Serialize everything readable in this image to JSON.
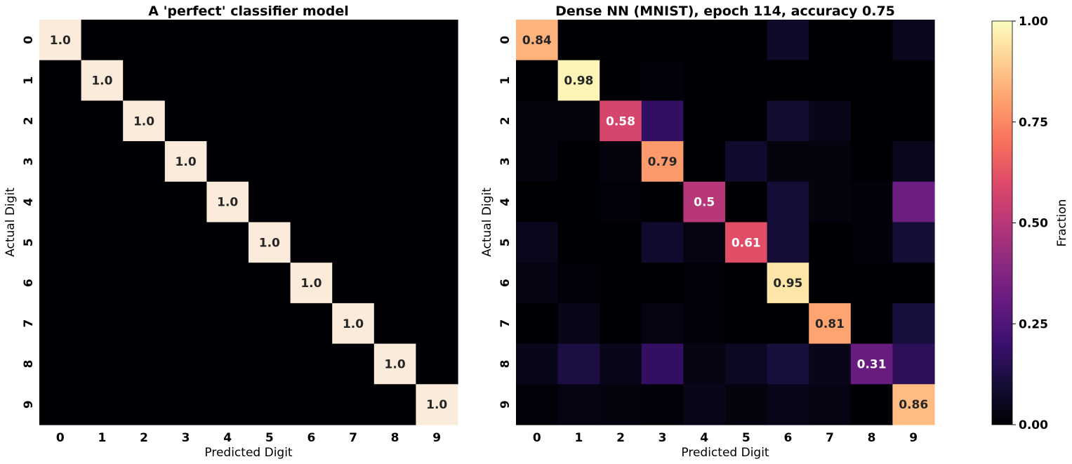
{
  "chart_data": [
    {
      "type": "heatmap",
      "title": "A 'perfect' classifier model",
      "xlabel": "Predicted Digit",
      "ylabel": "Actual Digit",
      "x_categories": [
        "0",
        "1",
        "2",
        "3",
        "4",
        "5",
        "6",
        "7",
        "8",
        "9"
      ],
      "y_categories": [
        "0",
        "1",
        "2",
        "3",
        "4",
        "5",
        "6",
        "7",
        "8",
        "9"
      ],
      "values": [
        [
          1.0,
          0,
          0,
          0,
          0,
          0,
          0,
          0,
          0,
          0
        ],
        [
          0,
          1.0,
          0,
          0,
          0,
          0,
          0,
          0,
          0,
          0
        ],
        [
          0,
          0,
          1.0,
          0,
          0,
          0,
          0,
          0,
          0,
          0
        ],
        [
          0,
          0,
          0,
          1.0,
          0,
          0,
          0,
          0,
          0,
          0
        ],
        [
          0,
          0,
          0,
          0,
          1.0,
          0,
          0,
          0,
          0,
          0
        ],
        [
          0,
          0,
          0,
          0,
          0,
          1.0,
          0,
          0,
          0,
          0
        ],
        [
          0,
          0,
          0,
          0,
          0,
          0,
          1.0,
          0,
          0,
          0
        ],
        [
          0,
          0,
          0,
          0,
          0,
          0,
          0,
          1.0,
          0,
          0
        ],
        [
          0,
          0,
          0,
          0,
          0,
          0,
          0,
          0,
          1.0,
          0
        ],
        [
          0,
          0,
          0,
          0,
          0,
          0,
          0,
          0,
          0,
          1.0
        ]
      ],
      "annotations": [
        {
          "row": 0,
          "col": 0,
          "text": "1.0"
        },
        {
          "row": 1,
          "col": 1,
          "text": "1.0"
        },
        {
          "row": 2,
          "col": 2,
          "text": "1.0"
        },
        {
          "row": 3,
          "col": 3,
          "text": "1.0"
        },
        {
          "row": 4,
          "col": 4,
          "text": "1.0"
        },
        {
          "row": 5,
          "col": 5,
          "text": "1.0"
        },
        {
          "row": 6,
          "col": 6,
          "text": "1.0"
        },
        {
          "row": 7,
          "col": 7,
          "text": "1.0"
        },
        {
          "row": 8,
          "col": 8,
          "text": "1.0"
        },
        {
          "row": 9,
          "col": 9,
          "text": "1.0"
        }
      ],
      "colormap": "magma",
      "vmin": 0,
      "vmax": 1
    },
    {
      "type": "heatmap",
      "title": "Dense NN (MNIST), epoch 114, accuracy 0.75",
      "xlabel": "Predicted Digit",
      "ylabel": "Actual Digit",
      "x_categories": [
        "0",
        "1",
        "2",
        "3",
        "4",
        "5",
        "6",
        "7",
        "8",
        "9"
      ],
      "y_categories": [
        "0",
        "1",
        "2",
        "3",
        "4",
        "5",
        "6",
        "7",
        "8",
        "9"
      ],
      "values": [
        [
          0.84,
          0.0,
          0.0,
          0.0,
          0.0,
          0.0,
          0.07,
          0.0,
          0.0,
          0.05
        ],
        [
          0.0,
          0.98,
          0.0,
          0.01,
          0.0,
          0.0,
          0.0,
          0.0,
          0.0,
          0.0
        ],
        [
          0.02,
          0.02,
          0.58,
          0.18,
          0.0,
          0.0,
          0.09,
          0.04,
          0.0,
          0.0
        ],
        [
          0.02,
          0.0,
          0.02,
          0.79,
          0.0,
          0.08,
          0.02,
          0.02,
          0.0,
          0.05
        ],
        [
          0.0,
          0.0,
          0.01,
          0.0,
          0.5,
          0.0,
          0.1,
          0.02,
          0.01,
          0.32
        ],
        [
          0.05,
          0.0,
          0.0,
          0.08,
          0.03,
          0.61,
          0.1,
          0.0,
          0.01,
          0.1
        ],
        [
          0.03,
          0.01,
          0.0,
          0.0,
          0.01,
          0.0,
          0.95,
          0.0,
          0.0,
          0.0
        ],
        [
          0.0,
          0.04,
          0.0,
          0.03,
          0.01,
          0.0,
          0.0,
          0.81,
          0.0,
          0.11
        ],
        [
          0.04,
          0.12,
          0.04,
          0.18,
          0.03,
          0.06,
          0.11,
          0.04,
          0.31,
          0.16
        ],
        [
          0.01,
          0.03,
          0.02,
          0.01,
          0.04,
          0.02,
          0.04,
          0.03,
          0.0,
          0.86
        ]
      ],
      "annotations": [
        {
          "row": 0,
          "col": 0,
          "text": "0.84"
        },
        {
          "row": 1,
          "col": 1,
          "text": "0.98"
        },
        {
          "row": 2,
          "col": 2,
          "text": "0.58"
        },
        {
          "row": 3,
          "col": 3,
          "text": "0.79"
        },
        {
          "row": 4,
          "col": 4,
          "text": "0.5"
        },
        {
          "row": 5,
          "col": 5,
          "text": "0.61"
        },
        {
          "row": 6,
          "col": 6,
          "text": "0.95"
        },
        {
          "row": 7,
          "col": 7,
          "text": "0.81"
        },
        {
          "row": 8,
          "col": 8,
          "text": "0.31"
        },
        {
          "row": 9,
          "col": 9,
          "text": "0.86"
        }
      ],
      "colormap": "magma",
      "vmin": 0,
      "vmax": 1
    }
  ],
  "colorbar": {
    "label": "Fraction",
    "ticks": [
      0.0,
      0.25,
      0.5,
      0.75,
      1.0
    ],
    "tick_labels": [
      "0.00",
      "0.25",
      "0.50",
      "0.75",
      "1.00"
    ],
    "vmin": 0,
    "vmax": 1,
    "colormap": "magma"
  }
}
